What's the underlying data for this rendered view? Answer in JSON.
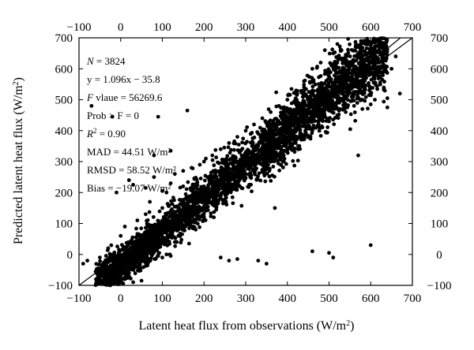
{
  "chart_data": {
    "type": "scatter",
    "xlabel": "Latent heat flux from observations (W/m²)",
    "ylabel": "Predicted latent heat flux (W/m²)",
    "xlim": [
      -100,
      700
    ],
    "ylim": [
      -100,
      700
    ],
    "x_ticks": [
      -100,
      0,
      100,
      200,
      300,
      400,
      500,
      600,
      700
    ],
    "y_ticks": [
      -100,
      0,
      100,
      200,
      300,
      400,
      500,
      600,
      700
    ],
    "mirror_axes": true,
    "grid": false,
    "marker_color": "#000000",
    "stats": {
      "n_prefix": "N",
      "n_value": " = 3824",
      "regression": "y = 1.096x − 35.8",
      "f_prefix": "F",
      "f_value": " vlaue = 56269.6",
      "prob": "Prob > F = 0",
      "r2_prefix": "R",
      "r2_value": " = 0.90",
      "mad": "MAD = 44.51 W/m²",
      "rmsd": "RMSD = 58.52 W/m²",
      "bias": "Bias = −19.07 W/m²"
    },
    "lines": [
      {
        "name": "",
        "slope": 1.0,
        "intercept": 0
      },
      {
        "name": "",
        "slope": 1.096,
        "intercept": -35.8
      }
    ],
    "point_count": 3824,
    "regression_slope": 1.096,
    "regression_intercept": -35.8,
    "points": [
      [
        -80,
        -20
      ],
      [
        -60,
        -55
      ],
      [
        -40,
        -30
      ],
      [
        -20,
        -10
      ],
      [
        0,
        -70
      ],
      [
        5,
        -40
      ],
      [
        10,
        -20
      ],
      [
        20,
        -60
      ],
      [
        30,
        20
      ],
      [
        40,
        -10
      ],
      [
        50,
        30
      ],
      [
        60,
        40
      ],
      [
        70,
        60
      ],
      [
        80,
        80
      ],
      [
        90,
        70
      ],
      [
        100,
        110
      ],
      [
        110,
        100
      ],
      [
        120,
        140
      ],
      [
        130,
        120
      ],
      [
        140,
        150
      ],
      [
        150,
        170
      ],
      [
        160,
        160
      ],
      [
        170,
        190
      ],
      [
        180,
        200
      ],
      [
        190,
        180
      ],
      [
        200,
        220
      ],
      [
        210,
        210
      ],
      [
        220,
        240
      ],
      [
        230,
        230
      ],
      [
        240,
        260
      ],
      [
        250,
        270
      ],
      [
        260,
        250
      ],
      [
        270,
        290
      ],
      [
        280,
        300
      ],
      [
        290,
        280
      ],
      [
        300,
        320
      ],
      [
        310,
        330
      ],
      [
        320,
        310
      ],
      [
        330,
        350
      ],
      [
        340,
        360
      ],
      [
        350,
        340
      ],
      [
        360,
        380
      ],
      [
        370,
        390
      ],
      [
        380,
        370
      ],
      [
        390,
        410
      ],
      [
        400,
        420
      ],
      [
        410,
        400
      ],
      [
        420,
        440
      ],
      [
        430,
        450
      ],
      [
        440,
        430
      ],
      [
        450,
        470
      ],
      [
        460,
        480
      ],
      [
        470,
        460
      ],
      [
        480,
        500
      ],
      [
        490,
        510
      ],
      [
        500,
        490
      ],
      [
        510,
        530
      ],
      [
        520,
        540
      ],
      [
        530,
        520
      ],
      [
        540,
        560
      ],
      [
        550,
        570
      ],
      [
        560,
        550
      ],
      [
        570,
        590
      ],
      [
        580,
        600
      ],
      [
        -70,
        480
      ],
      [
        -20,
        445
      ],
      [
        90,
        445
      ],
      [
        160,
        465
      ],
      [
        120,
        335
      ],
      [
        80,
        320
      ],
      [
        -10,
        200
      ],
      [
        20,
        240
      ],
      [
        30,
        225
      ],
      [
        60,
        215
      ],
      [
        80,
        250
      ],
      [
        100,
        205
      ],
      [
        440,
        560
      ],
      [
        470,
        500
      ],
      [
        500,
        5
      ],
      [
        510,
        -10
      ],
      [
        460,
        10
      ],
      [
        570,
        320
      ],
      [
        670,
        520
      ],
      [
        640,
        505
      ],
      [
        640,
        475
      ],
      [
        600,
        485
      ],
      [
        580,
        470
      ],
      [
        90,
        -5
      ],
      [
        100,
        -10
      ],
      [
        110,
        0
      ],
      [
        120,
        -5
      ],
      [
        240,
        -10
      ],
      [
        260,
        -20
      ],
      [
        280,
        -15
      ],
      [
        330,
        -20
      ],
      [
        350,
        -30
      ],
      [
        370,
        150
      ],
      [
        600,
        30
      ],
      [
        610,
        500
      ],
      [
        650,
        600
      ],
      [
        620,
        620
      ],
      [
        630,
        590
      ],
      [
        660,
        640
      ],
      [
        490,
        660
      ],
      [
        510,
        650
      ],
      [
        520,
        680
      ],
      [
        530,
        660
      ],
      [
        540,
        640
      ],
      [
        480,
        620
      ],
      [
        460,
        600
      ],
      [
        10,
        -80
      ],
      [
        30,
        -90
      ],
      [
        50,
        -85
      ],
      [
        20,
        -75
      ],
      [
        -90,
        -30
      ],
      [
        -50,
        -10
      ],
      [
        -30,
        20
      ],
      [
        0,
        60
      ],
      [
        10,
        90
      ],
      [
        40,
        110
      ],
      [
        60,
        130
      ],
      [
        70,
        170
      ],
      [
        100,
        150
      ],
      [
        150,
        220
      ],
      [
        140,
        90
      ],
      [
        130,
        40
      ],
      [
        180,
        80
      ],
      [
        200,
        120
      ],
      [
        220,
        170
      ],
      [
        240,
        190
      ],
      [
        260,
        210
      ],
      [
        280,
        230
      ],
      [
        300,
        260
      ],
      [
        320,
        270
      ],
      [
        340,
        290
      ],
      [
        360,
        300
      ],
      [
        380,
        320
      ],
      [
        400,
        340
      ],
      [
        420,
        360
      ],
      [
        440,
        380
      ],
      [
        460,
        400
      ],
      [
        480,
        410
      ],
      [
        500,
        430
      ],
      [
        520,
        450
      ],
      [
        540,
        460
      ],
      [
        560,
        480
      ],
      [
        580,
        500
      ],
      [
        600,
        520
      ],
      [
        200,
        300
      ],
      [
        220,
        320
      ],
      [
        240,
        340
      ],
      [
        260,
        360
      ],
      [
        280,
        380
      ],
      [
        300,
        400
      ],
      [
        320,
        420
      ],
      [
        340,
        440
      ],
      [
        360,
        460
      ],
      [
        380,
        480
      ],
      [
        400,
        500
      ],
      [
        420,
        520
      ],
      [
        440,
        540
      ],
      [
        460,
        560
      ],
      [
        150,
        270
      ],
      [
        170,
        280
      ],
      [
        190,
        290
      ],
      [
        120,
        230
      ],
      [
        130,
        260
      ],
      [
        110,
        200
      ]
    ]
  }
}
